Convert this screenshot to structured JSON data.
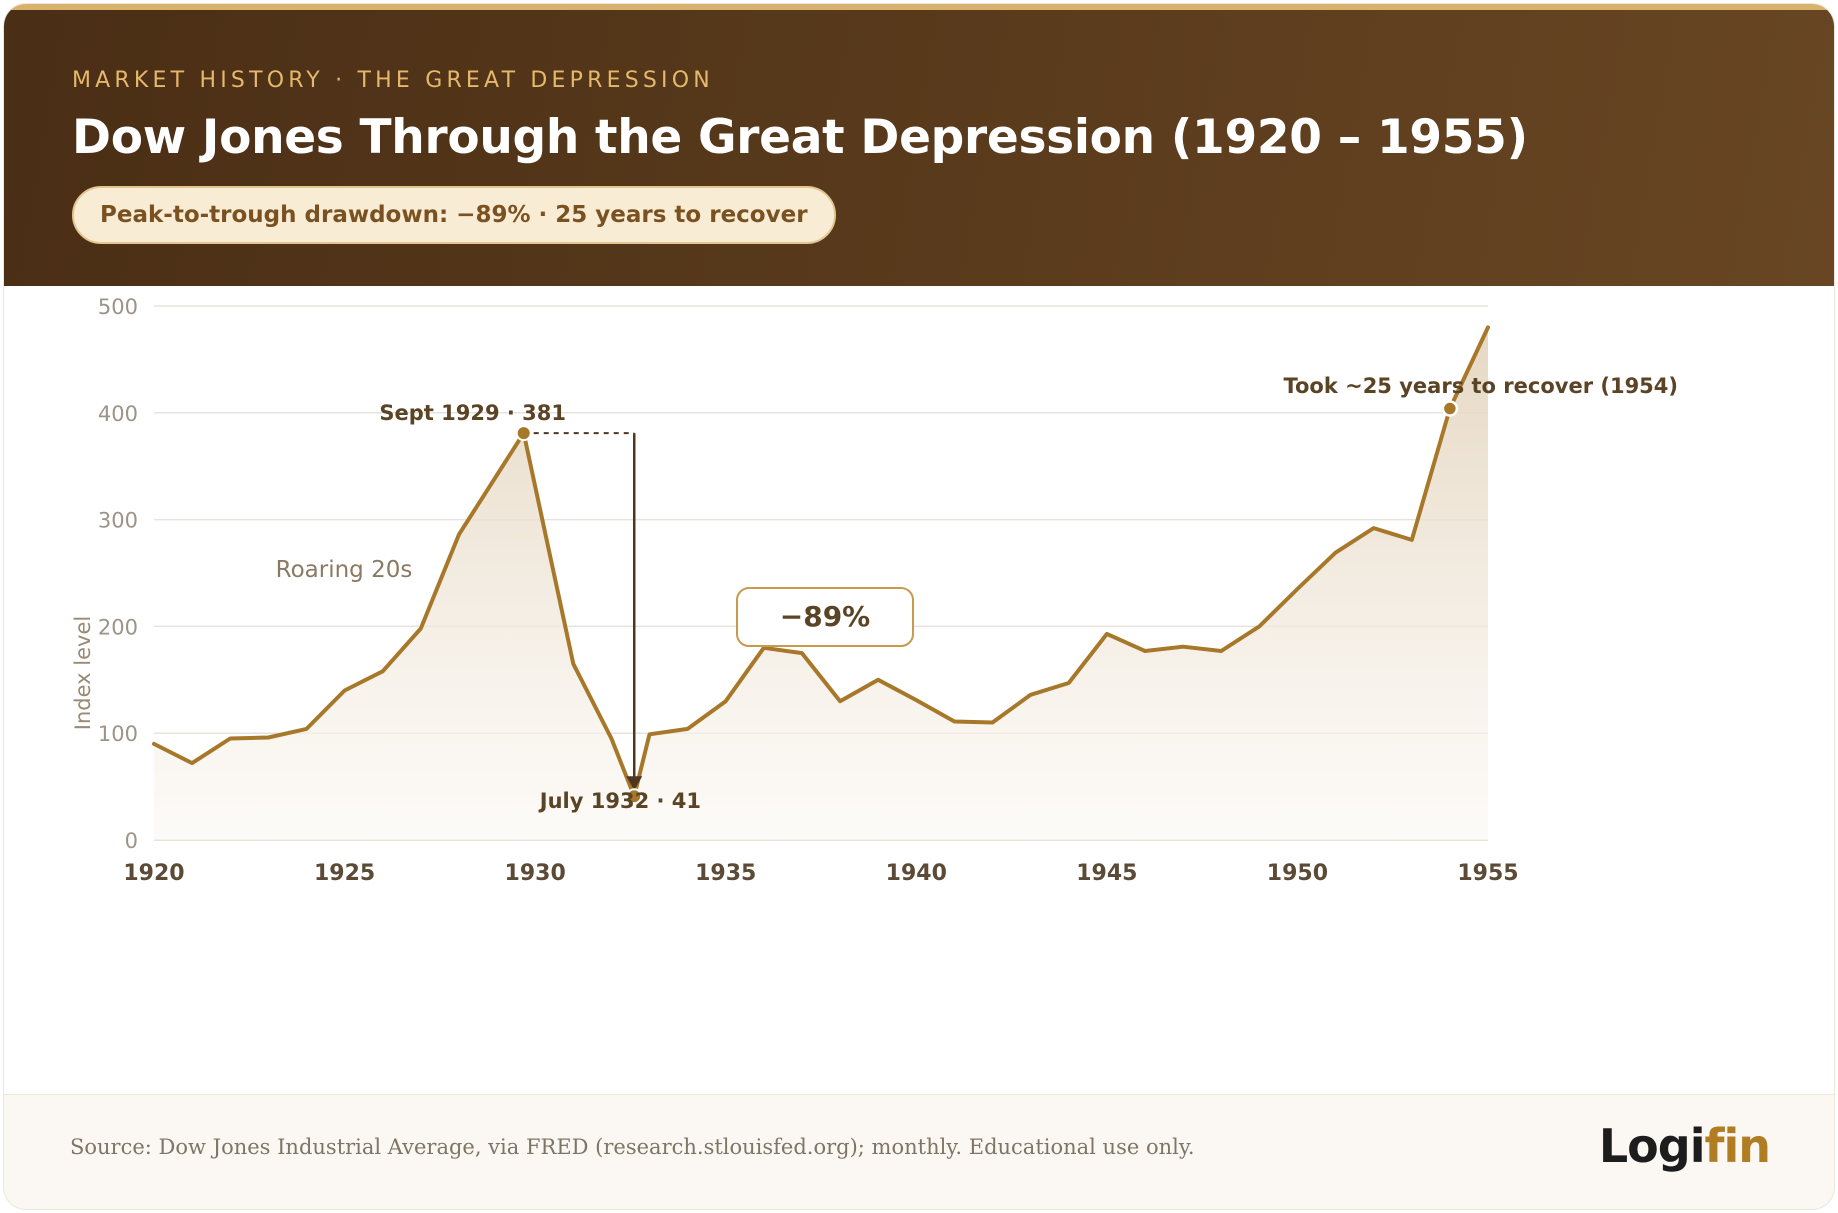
{
  "header": {
    "eyebrow": "MARKET HISTORY · THE GREAT DEPRESSION",
    "title": "Dow Jones Through the Great Depression (1920 – 1955)",
    "pill": "Peak-to-trough drawdown: −89% · 25 years to recover"
  },
  "chart_data": {
    "type": "area",
    "title": "Dow Jones Through the Great Depression (1920 – 1955)",
    "ylabel": "Index level",
    "xlabel": "",
    "xlim": [
      1920,
      1955
    ],
    "ylim": [
      0,
      500
    ],
    "x_ticks": [
      "1920",
      "1925",
      "1930",
      "1935",
      "1940",
      "1945",
      "1950",
      "1955"
    ],
    "y_ticks": [
      "0",
      "100",
      "200",
      "300",
      "400",
      "500"
    ],
    "grid": true,
    "legend": "none",
    "series": [
      {
        "x": [
          1920,
          1921,
          1922,
          1923,
          1924,
          1925,
          1926,
          1927,
          1928,
          1929.7,
          1931,
          1932,
          1932.6,
          1933,
          1934,
          1935,
          1936,
          1937,
          1938,
          1939,
          1940,
          1941,
          1942,
          1943,
          1944,
          1945,
          1946,
          1947,
          1948,
          1949,
          1950,
          1951,
          1952,
          1953,
          1954,
          1955
        ],
        "y": [
          90,
          72,
          95,
          96,
          104,
          140,
          158,
          198,
          286,
          381,
          165,
          95,
          41,
          99,
          104,
          130,
          180,
          175,
          130,
          150,
          131,
          111,
          110,
          136,
          147,
          193,
          177,
          181,
          177,
          200,
          235,
          269,
          292,
          281,
          404,
          480
        ]
      }
    ],
    "annotations": {
      "region_label": "Roaring 20s",
      "peak": {
        "label": "Sept 1929 · 381",
        "x": 1929.7,
        "y": 381
      },
      "trough": {
        "label": "July 1932 · 41",
        "x": 1932.6,
        "y": 41
      },
      "drawdown": "−89%",
      "recovery": {
        "label": "Took ~25 years to recover (1954)",
        "x": 1954,
        "y": 404
      }
    }
  },
  "colors": {
    "line": "#a7782a",
    "axis_text": "#9c948a",
    "annotation_text": "#5b4326",
    "arrow": "#4e3720",
    "grid": "#e7e3dc"
  },
  "footer": {
    "source": "Source: Dow Jones Industrial Average, via FRED (research.stlouisfed.org); monthly. Educational use only.",
    "logo_part1": "Logi",
    "logo_part2": "fin"
  }
}
